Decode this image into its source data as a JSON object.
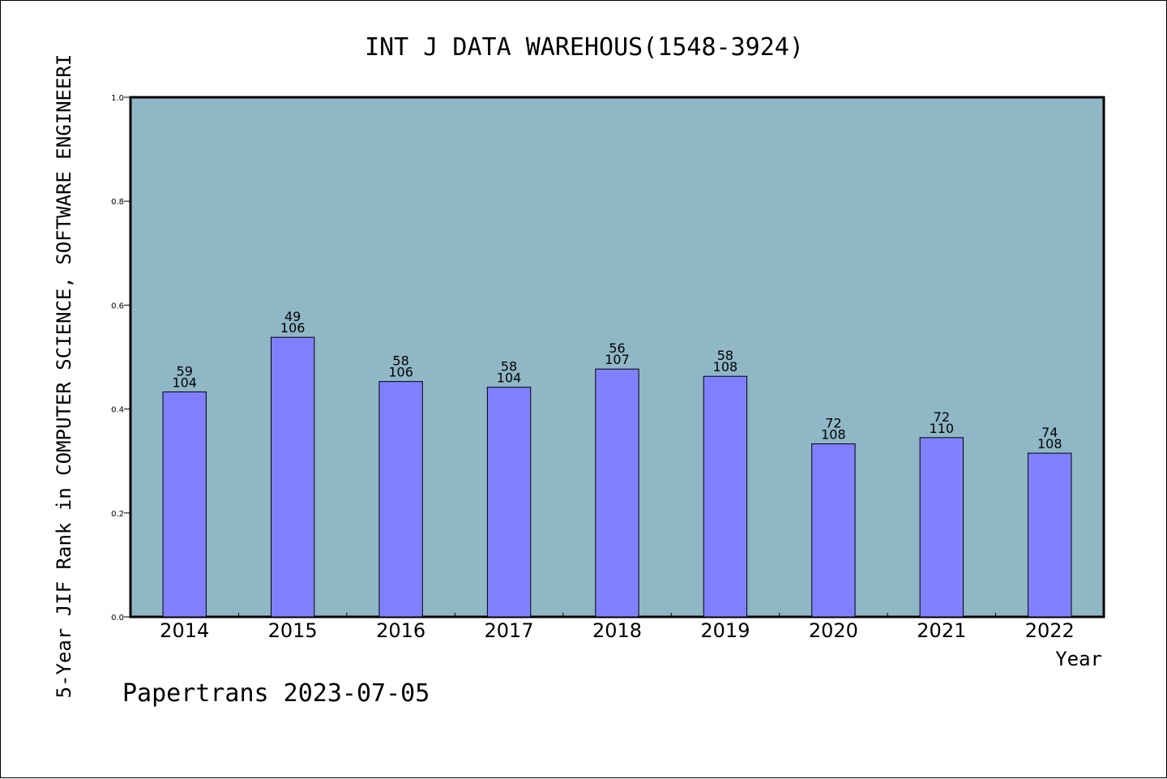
{
  "chart_data": {
    "type": "bar",
    "title": "INT J DATA WAREHOUS(1548-3924)",
    "xlabel": "Year",
    "ylabel": "5-Year JIF Rank in COMPUTER SCIENCE, SOFTWARE ENGINEERI",
    "categories": [
      "2014",
      "2015",
      "2016",
      "2017",
      "2018",
      "2019",
      "2020",
      "2021",
      "2022"
    ],
    "values": [
      0.433,
      0.538,
      0.453,
      0.442,
      0.477,
      0.463,
      0.333,
      0.345,
      0.315
    ],
    "rank_labels": [
      "59",
      "49",
      "58",
      "58",
      "56",
      "58",
      "72",
      "72",
      "74"
    ],
    "total_labels": [
      "104",
      "106",
      "106",
      "104",
      "107",
      "108",
      "108",
      "110",
      "108"
    ],
    "ylim": [
      0,
      1.0
    ],
    "yticks": [
      "0.0",
      "0.2",
      "0.4",
      "0.6",
      "0.8",
      "1.0"
    ],
    "grid": false,
    "legend": "none",
    "colors": {
      "plot_background": "#8fb7c6",
      "bar_fill": "#8080ff",
      "bar_stroke": "#000000"
    }
  },
  "footer": {
    "text": "Papertrans 2023-07-05"
  }
}
